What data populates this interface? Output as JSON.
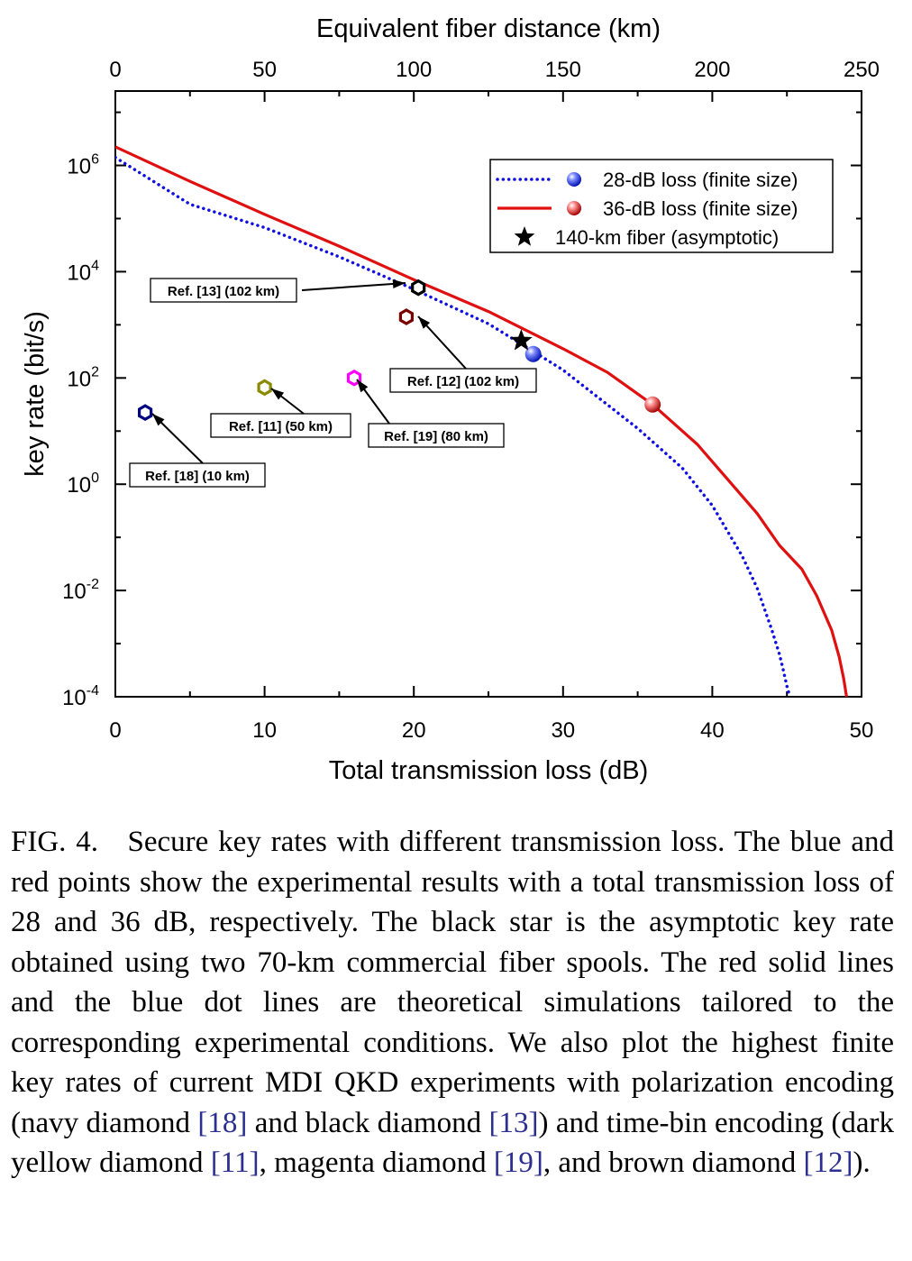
{
  "chart_data": {
    "type": "line",
    "xlabel": "Total transmission loss (dB)",
    "x2label": "Equivalent fiber distance (km)",
    "ylabel": "key rate (bit/s)",
    "xlim": [
      0,
      50
    ],
    "x2lim": [
      0,
      250
    ],
    "ylim_log10": [
      -4,
      7.4
    ],
    "yscale": "log",
    "xticks": [
      0,
      10,
      20,
      30,
      40,
      50
    ],
    "x2ticks": [
      0,
      50,
      100,
      150,
      200,
      250
    ],
    "yticks": [
      {
        "base": "10",
        "exp": "6"
      },
      {
        "base": "10",
        "exp": "4"
      },
      {
        "base": "10",
        "exp": "2"
      },
      {
        "base": "10",
        "exp": "0"
      },
      {
        "base": "10",
        "exp": "-2"
      },
      {
        "base": "10",
        "exp": "-4"
      }
    ],
    "legend_position": "top-right",
    "series": [
      {
        "name": "28-dB loss (finite size)",
        "style": "dotted",
        "color": "#1010e0",
        "x": [
          0,
          5,
          10,
          15,
          20,
          25,
          28,
          30,
          35,
          38,
          40,
          42,
          43,
          44,
          44.5,
          44.8,
          45.0,
          45.2
        ],
        "log10_y": [
          6.15,
          5.27,
          4.83,
          4.28,
          3.67,
          3.02,
          2.5,
          2.15,
          1.05,
          0.3,
          -0.4,
          -1.35,
          -1.95,
          -2.75,
          -3.2,
          -3.55,
          -3.8,
          -4.0
        ]
      },
      {
        "name": "36-dB loss (finite size)",
        "style": "solid",
        "color": "#e01010",
        "x": [
          0,
          5,
          10,
          15,
          20,
          25,
          30,
          33,
          36,
          39,
          41,
          43,
          44.5,
          46,
          47,
          48,
          48.5,
          48.8,
          49.0
        ],
        "log10_y": [
          6.35,
          5.7,
          5.08,
          4.48,
          3.85,
          3.25,
          2.55,
          2.1,
          1.5,
          0.75,
          0.1,
          -0.55,
          -1.15,
          -1.6,
          -2.1,
          -2.75,
          -3.25,
          -3.65,
          -4.0
        ]
      }
    ],
    "points": [
      {
        "name": "28-dB loss (finite size)",
        "marker": "ball",
        "color": "#1f2fff",
        "x": 28.0,
        "log10_y": 2.45
      },
      {
        "name": "36-dB loss (finite size)",
        "marker": "ball",
        "color": "#ff1f1f",
        "x": 36.0,
        "log10_y": 1.5
      },
      {
        "name": "140-km fiber (asymptotic)",
        "marker": "star",
        "color": "#000000",
        "x": 27.2,
        "log10_y": 2.7
      }
    ],
    "refs": [
      {
        "label": "Ref. [13] (102 km)",
        "color": "#000000",
        "x": 20.3,
        "log10_y": 3.7
      },
      {
        "label": "Ref. [12] (102 km)",
        "color": "#7a0000",
        "x": 19.5,
        "log10_y": 3.15
      },
      {
        "label": "Ref. [19] (80 km)",
        "color": "#ff00ff",
        "x": 16.0,
        "log10_y": 2.0
      },
      {
        "label": "Ref. [11] (50 km)",
        "color": "#8b8b00",
        "x": 10.0,
        "log10_y": 1.82
      },
      {
        "label": "Ref. [18] (10 km)",
        "color": "#000080",
        "x": 2.0,
        "log10_y": 1.35
      }
    ]
  },
  "caption": {
    "lead": "FIG. 4.",
    "text1": "Secure key rates with different transmission loss. The blue and red points show the experimental results with a total transmission loss of 28 and 36 dB, respectively. The black star is the asymptotic key rate obtained using two 70-km commercial fiber spools. The red solid lines and the blue dot lines are theoretical simulations tailored to the corresponding experimental conditions. We also plot the highest finite key rates of current MDI QKD experiments with polarization encoding (navy diamond ",
    "ref18": "[18]",
    "text2": " and black diamond ",
    "ref13": "[13]",
    "text3": ") and time-bin encoding (dark yellow diamond ",
    "ref11": "[11]",
    "text4": ", magenta diamond ",
    "ref19": "[19]",
    "text5": ", and brown diamond ",
    "ref12": "[12]",
    "text6": ")."
  }
}
